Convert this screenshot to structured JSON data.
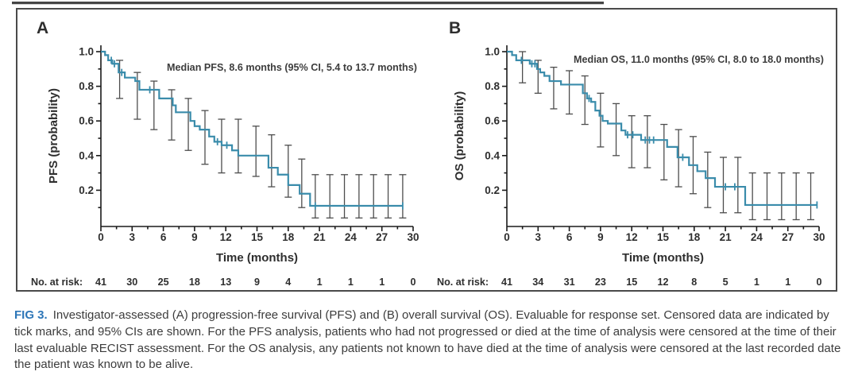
{
  "colors": {
    "curve": "#3a8cab",
    "error_bar": "#4d4d4d",
    "axis": "#1a1a1a",
    "fig_label": "#2d76b8",
    "text": "#2e2e2e"
  },
  "caption": {
    "label": "FIG 3.",
    "text": "Investigator-assessed (A) progression-free survival (PFS) and (B) overall survival (OS). Evaluable for response set. Censored data are indicated by tick marks, and 95% CIs are shown. For the PFS analysis, patients who had not progressed or died at the time of analysis were censored at the time of their last evaluable RECIST assessment. For the OS analysis, any patients not known to have died at the time of analysis were censored at the last recorded date the patient was known to be alive."
  },
  "chart_data": [
    {
      "type": "line",
      "panel_letter": "A",
      "annotation": "Median PFS, 8.6 months (95% CI, 5.4 to 13.7 months)",
      "ylabel": "PFS (probability)",
      "xlabel": "Time (months)",
      "x_ticks": [
        0,
        3,
        6,
        9,
        12,
        15,
        18,
        21,
        24,
        27,
        30
      ],
      "y_ticks": [
        0.2,
        0.4,
        0.6,
        0.8,
        1.0
      ],
      "xlim": [
        0,
        30
      ],
      "ylim": [
        0,
        1.0
      ],
      "grid": false,
      "risk_label": "No. at risk:",
      "at_risk": [
        41,
        30,
        25,
        18,
        13,
        9,
        4,
        1,
        1,
        1,
        0
      ],
      "km_steps": [
        [
          0,
          1.0
        ],
        [
          0.4,
          0.98
        ],
        [
          0.7,
          0.95
        ],
        [
          1.1,
          0.93
        ],
        [
          1.7,
          0.88
        ],
        [
          2.3,
          0.85
        ],
        [
          3.3,
          0.83
        ],
        [
          3.7,
          0.78
        ],
        [
          5.6,
          0.73
        ],
        [
          6.9,
          0.69
        ],
        [
          7.2,
          0.65
        ],
        [
          8.6,
          0.6
        ],
        [
          9.0,
          0.57
        ],
        [
          9.5,
          0.55
        ],
        [
          10.4,
          0.51
        ],
        [
          10.9,
          0.48
        ],
        [
          11.6,
          0.46
        ],
        [
          12.6,
          0.43
        ],
        [
          13.2,
          0.4
        ],
        [
          16.1,
          0.33
        ],
        [
          17.0,
          0.29
        ],
        [
          18.0,
          0.23
        ],
        [
          19.1,
          0.18
        ],
        [
          20.1,
          0.11
        ]
      ],
      "end_time": 29.0,
      "censor_times": [
        1.0,
        1.3,
        2.0,
        4.7,
        11.2,
        12.1,
        20.6,
        29.0
      ],
      "error_bars": [
        [
          1.8,
          0.73,
          0.95
        ],
        [
          3.5,
          0.61,
          0.88
        ],
        [
          5.1,
          0.55,
          0.83
        ],
        [
          6.8,
          0.49,
          0.78
        ],
        [
          8.4,
          0.43,
          0.73
        ],
        [
          10.0,
          0.35,
          0.66
        ],
        [
          11.6,
          0.3,
          0.61
        ],
        [
          13.2,
          0.3,
          0.61
        ],
        [
          14.9,
          0.28,
          0.57
        ],
        [
          16.4,
          0.22,
          0.52
        ],
        [
          18.0,
          0.16,
          0.46
        ],
        [
          19.3,
          0.1,
          0.38
        ],
        [
          20.6,
          0.04,
          0.29
        ],
        [
          22.0,
          0.04,
          0.29
        ],
        [
          23.4,
          0.04,
          0.29
        ],
        [
          24.8,
          0.04,
          0.29
        ],
        [
          26.2,
          0.04,
          0.29
        ],
        [
          27.6,
          0.04,
          0.29
        ],
        [
          29.0,
          0.04,
          0.29
        ]
      ]
    },
    {
      "type": "line",
      "panel_letter": "B",
      "annotation": "Median OS, 11.0 months (95% CI, 8.0 to 18.0 months)",
      "ylabel": "OS (probability)",
      "xlabel": "Time (months)",
      "x_ticks": [
        0,
        3,
        6,
        9,
        12,
        15,
        18,
        21,
        24,
        27,
        30
      ],
      "y_ticks": [
        0.2,
        0.4,
        0.6,
        0.8,
        1.0
      ],
      "xlim": [
        0,
        30
      ],
      "ylim": [
        0,
        1.0
      ],
      "grid": false,
      "risk_label": "No. at risk:",
      "at_risk": [
        41,
        34,
        31,
        23,
        15,
        12,
        8,
        5,
        1,
        1,
        0
      ],
      "km_steps": [
        [
          0,
          1.0
        ],
        [
          0.5,
          0.98
        ],
        [
          0.9,
          0.95
        ],
        [
          2.2,
          0.93
        ],
        [
          2.9,
          0.9
        ],
        [
          3.2,
          0.88
        ],
        [
          3.6,
          0.86
        ],
        [
          4.1,
          0.83
        ],
        [
          5.2,
          0.81
        ],
        [
          7.3,
          0.76
        ],
        [
          7.7,
          0.73
        ],
        [
          8.1,
          0.71
        ],
        [
          8.5,
          0.66
        ],
        [
          8.9,
          0.63
        ],
        [
          9.2,
          0.6
        ],
        [
          9.7,
          0.585
        ],
        [
          11.0,
          0.545
        ],
        [
          11.4,
          0.52
        ],
        [
          12.9,
          0.49
        ],
        [
          15.4,
          0.45
        ],
        [
          16.4,
          0.39
        ],
        [
          17.5,
          0.345
        ],
        [
          18.3,
          0.31
        ],
        [
          19.1,
          0.27
        ],
        [
          20.0,
          0.22
        ],
        [
          22.9,
          0.115
        ]
      ],
      "end_time": 29.8,
      "censor_times": [
        1.4,
        2.4,
        2.7,
        7.9,
        11.6,
        12.1,
        13.3,
        13.7,
        14.1,
        16.9,
        21.0,
        21.9,
        29.8
      ],
      "error_bars": [
        [
          1.5,
          0.82,
          1.0
        ],
        [
          3.0,
          0.76,
          0.95
        ],
        [
          4.5,
          0.67,
          0.91
        ],
        [
          6.0,
          0.64,
          0.89
        ],
        [
          7.5,
          0.58,
          0.86
        ],
        [
          9.0,
          0.45,
          0.76
        ],
        [
          10.5,
          0.4,
          0.7
        ],
        [
          12.0,
          0.33,
          0.63
        ],
        [
          13.5,
          0.33,
          0.63
        ],
        [
          15.1,
          0.26,
          0.58
        ],
        [
          16.5,
          0.22,
          0.55
        ],
        [
          17.9,
          0.18,
          0.51
        ],
        [
          19.3,
          0.1,
          0.42
        ],
        [
          20.8,
          0.07,
          0.39
        ],
        [
          22.2,
          0.07,
          0.39
        ],
        [
          23.6,
          0.03,
          0.3
        ],
        [
          25.0,
          0.03,
          0.3
        ],
        [
          26.4,
          0.03,
          0.3
        ],
        [
          27.8,
          0.03,
          0.3
        ],
        [
          29.2,
          0.03,
          0.3
        ]
      ]
    }
  ]
}
